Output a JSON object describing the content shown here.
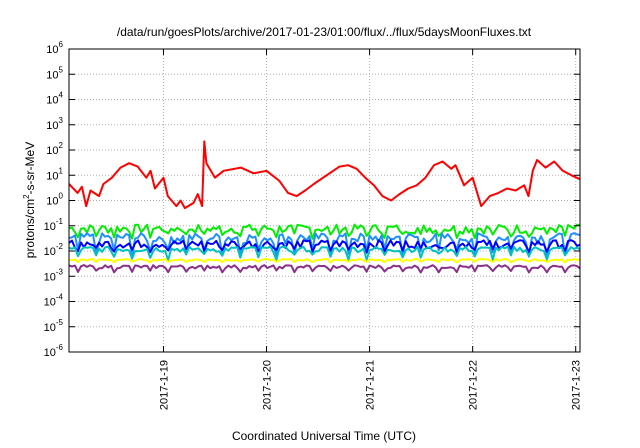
{
  "chart_data": {
    "type": "line",
    "title": "/data/run/goesPlots/archive/2017-01-23/01:00/flux/../flux/5daysMoonFluxes.txt",
    "xlabel": "Coordinated Universal Time (UTC)",
    "ylabel": {
      "pre": "protons/cm",
      "sup": "2",
      "post": "-s-sr-MeV"
    },
    "yscale": "log",
    "ylim_exp": [
      -6,
      6
    ],
    "y_tick_exponents": [
      -6,
      -5,
      -4,
      -3,
      -2,
      -1,
      0,
      1,
      2,
      3,
      4,
      5,
      6
    ],
    "xlim": [
      "2017-01-18 02:00",
      "2017-01-23 01:00"
    ],
    "x_ticks": [
      "2017-1-19",
      "2017-1-20",
      "2017-1-21",
      "2017-1-22",
      "2017-1-23"
    ],
    "grid": true,
    "series": [
      {
        "color": "#ff0000",
        "points": [
          [
            "2017-01-18 02:00",
            4.5
          ],
          [
            "2017-01-18 04:00",
            2.0
          ],
          [
            "2017-01-18 05:00",
            3.5
          ],
          [
            "2017-01-18 06:00",
            0.6
          ],
          [
            "2017-01-18 07:00",
            2.5
          ],
          [
            "2017-01-18 09:00",
            1.5
          ],
          [
            "2017-01-18 10:00",
            4.5
          ],
          [
            "2017-01-18 12:00",
            8.0
          ],
          [
            "2017-01-18 14:00",
            20.0
          ],
          [
            "2017-01-18 16:00",
            30.0
          ],
          [
            "2017-01-18 18:00",
            22.0
          ],
          [
            "2017-01-18 20:00",
            8.0
          ],
          [
            "2017-01-18 21:00",
            15.0
          ],
          [
            "2017-01-18 22:00",
            3.0
          ],
          [
            "2017-01-19 00:00",
            8.0
          ],
          [
            "2017-01-19 01:00",
            1.5
          ],
          [
            "2017-01-19 03:00",
            0.6
          ],
          [
            "2017-01-19 04:00",
            1.0
          ],
          [
            "2017-01-19 05:00",
            0.5
          ],
          [
            "2017-01-19 07:00",
            0.8
          ],
          [
            "2017-01-19 08:00",
            1.8
          ],
          [
            "2017-01-19 09:00",
            0.6
          ],
          [
            "2017-01-19 09:30",
            220.0
          ],
          [
            "2017-01-19 10:00",
            30.0
          ],
          [
            "2017-01-19 12:00",
            8.0
          ],
          [
            "2017-01-19 14:00",
            15.0
          ],
          [
            "2017-01-19 18:00",
            20.0
          ],
          [
            "2017-01-19 21:00",
            12.0
          ],
          [
            "2017-01-20 00:00",
            15.0
          ],
          [
            "2017-01-20 03:00",
            6.0
          ],
          [
            "2017-01-20 05:00",
            2.0
          ],
          [
            "2017-01-20 07:00",
            1.5
          ],
          [
            "2017-01-20 09:00",
            2.5
          ],
          [
            "2017-01-20 11:00",
            4.5
          ],
          [
            "2017-01-20 14:00",
            10.0
          ],
          [
            "2017-01-20 17:00",
            22.0
          ],
          [
            "2017-01-20 19:00",
            25.0
          ],
          [
            "2017-01-20 21:00",
            18.0
          ],
          [
            "2017-01-20 23:00",
            8.0
          ],
          [
            "2017-01-21 01:00",
            4.0
          ],
          [
            "2017-01-21 03:00",
            1.5
          ],
          [
            "2017-01-21 05:00",
            1.0
          ],
          [
            "2017-01-21 07:00",
            1.8
          ],
          [
            "2017-01-21 09:00",
            3.0
          ],
          [
            "2017-01-21 11:00",
            4.0
          ],
          [
            "2017-01-21 13:00",
            8.0
          ],
          [
            "2017-01-21 15:00",
            25.0
          ],
          [
            "2017-01-21 17:00",
            35.0
          ],
          [
            "2017-01-21 19:00",
            18.0
          ],
          [
            "2017-01-21 20:00",
            25.0
          ],
          [
            "2017-01-21 22:00",
            4.0
          ],
          [
            "2017-01-22 00:00",
            8.0
          ],
          [
            "2017-01-22 02:00",
            0.6
          ],
          [
            "2017-01-22 04:00",
            1.5
          ],
          [
            "2017-01-22 06:00",
            2.0
          ],
          [
            "2017-01-22 08:00",
            3.0
          ],
          [
            "2017-01-22 10:00",
            2.5
          ],
          [
            "2017-01-22 12:00",
            4.0
          ],
          [
            "2017-01-22 13:00",
            1.5
          ],
          [
            "2017-01-22 14:00",
            15.0
          ],
          [
            "2017-01-22 15:00",
            40.0
          ],
          [
            "2017-01-22 17:00",
            20.0
          ],
          [
            "2017-01-22 19:00",
            35.0
          ],
          [
            "2017-01-22 21:00",
            15.0
          ],
          [
            "2017-01-22 23:00",
            10.0
          ],
          [
            "2017-01-23 01:00",
            7.0
          ]
        ]
      },
      {
        "color": "#00ee00",
        "base": 0.08,
        "wobble": 0.4,
        "dip_base": 0.03,
        "dip_var": 0.02
      },
      {
        "color": "#1e90ff",
        "base": 0.035,
        "wobble": 0.45,
        "dip_base": 0.006,
        "dip_var": 0.006
      },
      {
        "color": "#0000ff",
        "base": 0.02,
        "wobble": 0.35,
        "dip_base": 0.008,
        "dip_var": 0.006
      },
      {
        "color": "#00c0c0",
        "base": 0.012,
        "wobble": 0.25,
        "dip_base": 0.004,
        "dip_var": 0.004
      },
      {
        "color": "#ffff00",
        "base": 0.0045,
        "wobble": 0.08,
        "dip_base": 0.0035,
        "dip_var": 0.0003
      },
      {
        "color": "#8b2f8b",
        "base": 0.0024,
        "wobble": 0.15,
        "dip_base": 0.0014,
        "dip_var": 0.0003
      }
    ]
  }
}
